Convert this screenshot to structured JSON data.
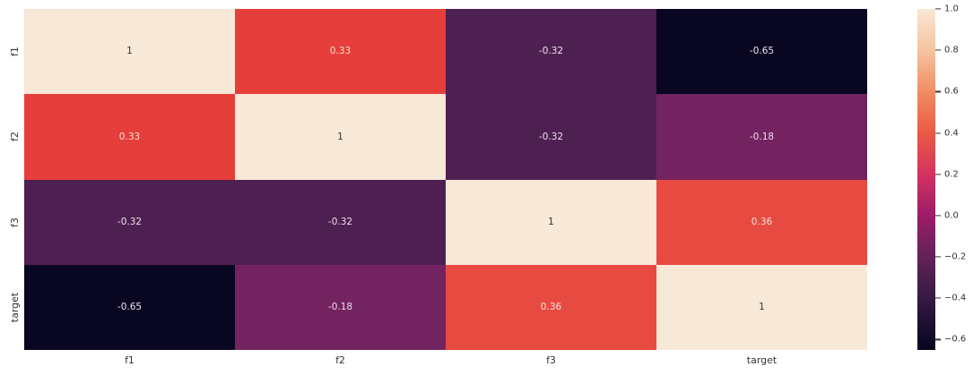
{
  "figure": {
    "background": "#ffffff"
  },
  "chart_data": {
    "type": "heatmap",
    "title": "",
    "xlabel": "",
    "ylabel": "",
    "x_labels": [
      "f1",
      "f2",
      "f3",
      "target"
    ],
    "y_labels": [
      "f1",
      "f2",
      "f3",
      "target"
    ],
    "matrix": [
      [
        1,
        0.33,
        -0.32,
        -0.65
      ],
      [
        0.33,
        1,
        -0.32,
        -0.18
      ],
      [
        -0.32,
        -0.32,
        1,
        0.36
      ],
      [
        -0.65,
        -0.18,
        0.36,
        1
      ]
    ],
    "annotations": [
      [
        "1",
        "0.33",
        "-0.32",
        "-0.65"
      ],
      [
        "0.33",
        "1",
        "-0.32",
        "-0.18"
      ],
      [
        "-0.32",
        "-0.32",
        "1",
        "0.36"
      ],
      [
        "-0.65",
        "-0.18",
        "0.36",
        "1"
      ]
    ],
    "cell_colors": [
      [
        "#f8e8d8",
        "#e63e3b",
        "#4e2051",
        "#090621"
      ],
      [
        "#e63e3b",
        "#f8e8d8",
        "#4e2051",
        "#722360"
      ],
      [
        "#4e2051",
        "#4e2051",
        "#f8e8d8",
        "#e74a41"
      ],
      [
        "#090621",
        "#722360",
        "#e74a41",
        "#f8e8d8"
      ]
    ],
    "annotation_colors": [
      [
        "#333333",
        "#f5e4d8",
        "#efe0ea",
        "#e9e7ef"
      ],
      [
        "#f5e4d8",
        "#333333",
        "#efe0ea",
        "#f2dcea"
      ],
      [
        "#efe0ea",
        "#efe0ea",
        "#333333",
        "#f5e4d8"
      ],
      [
        "#e9e7ef",
        "#f2dcea",
        "#f5e4d8",
        "#333333"
      ]
    ],
    "vmin": -0.65,
    "vmax": 1.0,
    "colormap": "rocket",
    "grid": false,
    "legend_position": "right-colorbar",
    "colorbar": {
      "ticks": [
        {
          "value": 1.0,
          "label": "1.0"
        },
        {
          "value": 0.8,
          "label": "0.8"
        },
        {
          "value": 0.6,
          "label": "0.6"
        },
        {
          "value": 0.4,
          "label": "0.4"
        },
        {
          "value": 0.2,
          "label": "0.2"
        },
        {
          "value": 0.0,
          "label": "0.0"
        },
        {
          "value": -0.2,
          "label": "−0.2"
        },
        {
          "value": -0.4,
          "label": "−0.4"
        },
        {
          "value": -0.6,
          "label": "−0.6"
        }
      ],
      "gradient": [
        {
          "pos": 0,
          "color": "#f8e7d4"
        },
        {
          "pos": 12.12,
          "color": "#f5c4a0"
        },
        {
          "pos": 24.24,
          "color": "#f18d62"
        },
        {
          "pos": 36.36,
          "color": "#e95a44"
        },
        {
          "pos": 48.48,
          "color": "#d53260"
        },
        {
          "pos": 60.61,
          "color": "#9c1c68"
        },
        {
          "pos": 72.73,
          "color": "#63215a"
        },
        {
          "pos": 84.85,
          "color": "#351a41"
        },
        {
          "pos": 96.97,
          "color": "#0f0927"
        },
        {
          "pos": 100,
          "color": "#070520"
        }
      ]
    }
  }
}
